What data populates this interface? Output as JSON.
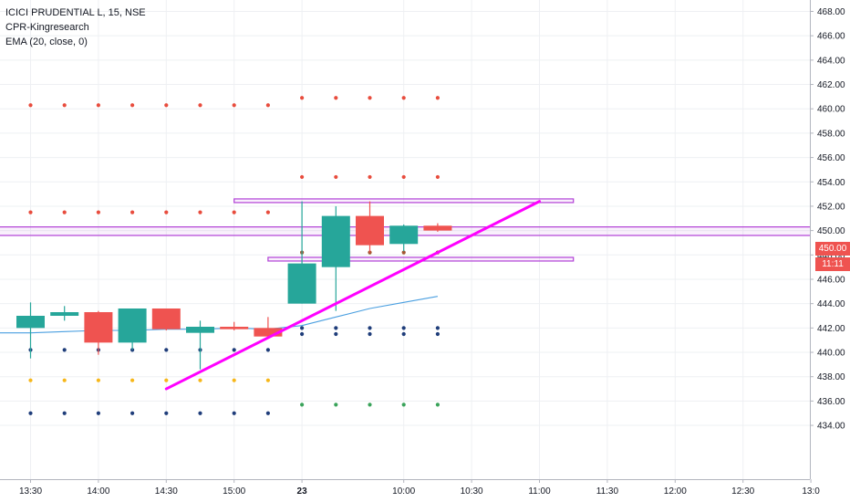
{
  "legend": {
    "symbol": "ICICI PRUDENTIAL L, 15, NSE",
    "indicator_1": "CPR-Kingresearch",
    "indicator_2": "EMA (20, close, 0)"
  },
  "price_tags": {
    "last_price": "450.00",
    "countdown": "11:11"
  },
  "colors": {
    "up": "#26a69a",
    "down": "#ef5350",
    "ema": "#4a9fe0",
    "trendline": "#ff00ff",
    "zone": "#b13fd6",
    "dot_red": "#e84c3d",
    "dot_navy": "#1f3d7a",
    "dot_yellow": "#f7b71a",
    "dot_green": "#3aa35a",
    "dot_brown": "#a3552f",
    "price_tag": "#ef5350"
  },
  "chart_data": {
    "type": "candlestick",
    "y_axis": {
      "min": 433,
      "max": 469,
      "ticks": [
        468,
        466,
        464,
        462,
        460,
        458,
        456,
        454,
        452,
        450,
        448,
        446,
        444,
        442,
        440,
        438,
        436,
        434
      ],
      "tick_labels": [
        "468.00",
        "466.00",
        "464.00",
        "462.00",
        "460.00",
        "458.00",
        "456.00",
        "454.00",
        "452.00",
        "450.00",
        "448.00",
        "446.00",
        "444.00",
        "442.00",
        "440.00",
        "438.00",
        "436.00",
        "434.00"
      ]
    },
    "x_axis": {
      "tick_labels": [
        "13:30",
        "14:00",
        "14:30",
        "15:00",
        "23",
        "10:00",
        "10:30",
        "11:00",
        "11:30",
        "12:00",
        "12:30",
        "13:0"
      ],
      "tick_slots": [
        1,
        3,
        5,
        7,
        9,
        12,
        14,
        16,
        18,
        20,
        22,
        24
      ]
    },
    "candles": [
      {
        "slot": 1,
        "open": 442.0,
        "high": 444.1,
        "low": 439.5,
        "close": 443.0
      },
      {
        "slot": 2,
        "open": 443.0,
        "high": 443.8,
        "low": 442.6,
        "close": 443.3
      },
      {
        "slot": 3,
        "open": 443.3,
        "high": 443.4,
        "low": 439.8,
        "close": 440.8
      },
      {
        "slot": 4,
        "open": 440.8,
        "high": 443.6,
        "low": 440.2,
        "close": 443.6
      },
      {
        "slot": 5,
        "open": 443.6,
        "high": 443.6,
        "low": 441.8,
        "close": 441.9
      },
      {
        "slot": 6,
        "open": 441.6,
        "high": 442.6,
        "low": 438.6,
        "close": 442.1
      },
      {
        "slot": 7,
        "open": 442.1,
        "high": 442.5,
        "low": 441.8,
        "close": 441.9
      },
      {
        "slot": 8,
        "open": 442.0,
        "high": 442.9,
        "low": 441.2,
        "close": 441.3
      },
      {
        "slot": 9,
        "open": 444.0,
        "high": 452.4,
        "low": 444.0,
        "close": 447.3
      },
      {
        "slot": 10,
        "open": 447.0,
        "high": 452.0,
        "low": 443.4,
        "close": 451.2
      },
      {
        "slot": 11,
        "open": 451.2,
        "high": 452.4,
        "low": 448.2,
        "close": 448.8
      },
      {
        "slot": 12,
        "open": 448.9,
        "high": 450.5,
        "low": 448.3,
        "close": 450.4
      },
      {
        "slot": 13,
        "open": 450.4,
        "high": 450.6,
        "low": 449.9,
        "close": 450.0
      }
    ],
    "ema": {
      "slots": [
        -0.5,
        1,
        2,
        3,
        4,
        5,
        6,
        7,
        8,
        9,
        10,
        11,
        12,
        13
      ],
      "values": [
        441.6,
        441.6,
        441.7,
        441.8,
        441.8,
        441.9,
        441.9,
        442.0,
        441.9,
        442.2,
        442.9,
        443.6,
        444.1,
        444.6
      ]
    },
    "cpr_dots": [
      {
        "level": 460.3,
        "slots": [
          1,
          2,
          3,
          4,
          5,
          6,
          7,
          8
        ],
        "color": "dot_red"
      },
      {
        "level": 451.5,
        "slots": [
          1,
          2,
          3,
          4,
          5,
          6,
          7,
          8
        ],
        "color": "dot_red"
      },
      {
        "level": 440.2,
        "slots": [
          1,
          2,
          3,
          4,
          5,
          6,
          7,
          8
        ],
        "color": "dot_navy"
      },
      {
        "level": 437.7,
        "slots": [
          1,
          2,
          3,
          4,
          5,
          6,
          7,
          8
        ],
        "color": "dot_yellow"
      },
      {
        "level": 435.0,
        "slots": [
          1,
          2,
          3,
          4,
          5,
          6,
          7,
          8
        ],
        "color": "dot_navy"
      },
      {
        "level": 460.9,
        "slots": [
          9,
          10,
          11,
          12,
          13
        ],
        "color": "dot_red"
      },
      {
        "level": 454.4,
        "slots": [
          9,
          10,
          11,
          12,
          13
        ],
        "color": "dot_red"
      },
      {
        "level": 448.2,
        "slots": [
          9,
          10,
          11,
          12,
          13
        ],
        "color": "dot_brown"
      },
      {
        "level": 442.0,
        "slots": [
          9,
          10,
          11,
          12,
          13
        ],
        "color": "dot_navy"
      },
      {
        "level": 441.5,
        "slots": [
          9,
          10,
          11,
          12,
          13
        ],
        "color": "dot_navy"
      },
      {
        "level": 435.7,
        "slots": [
          9,
          10,
          11,
          12,
          13
        ],
        "color": "dot_green"
      }
    ],
    "zones": [
      {
        "from_slot": -1,
        "to_slot": 25,
        "low": 449.6,
        "high": 450.3
      },
      {
        "from_slot": 7,
        "to_slot": 17,
        "low": 452.3,
        "high": 452.6
      },
      {
        "from_slot": 8,
        "to_slot": 17,
        "low": 447.5,
        "high": 447.8
      }
    ],
    "trendline": {
      "from": {
        "slot": 5,
        "value": 437.0
      },
      "to": {
        "slot": 16,
        "value": 452.4
      }
    }
  }
}
